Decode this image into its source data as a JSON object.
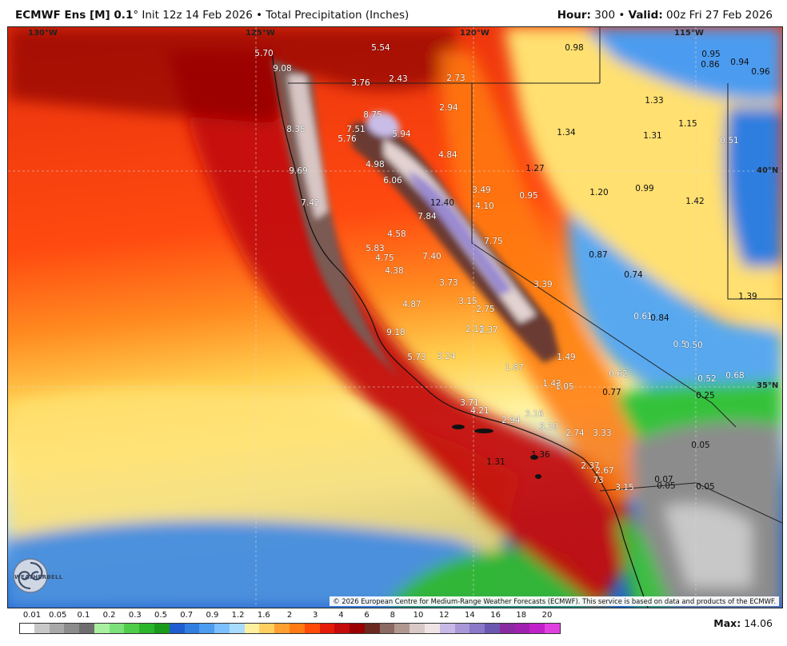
{
  "header": {
    "model": "ECMWF Ens [M] 0.1",
    "degree": "°",
    "init": "Init 12z 14 Feb 2026",
    "sep": "•",
    "product": "Total Precipitation (Inches)",
    "hour_label": "Hour:",
    "hour_value": "300",
    "valid_label": "Valid:",
    "valid_value": "00z Fri 27 Feb 2026"
  },
  "coords": {
    "lon130": "130°W",
    "lon125": "125°W",
    "lon120": "120°W",
    "lon115": "115°W",
    "lat40": "40°N",
    "lat35": "35°N"
  },
  "colors": {
    "ocean_far": "#ff3a10",
    "coast_red": "#d2140a",
    "dark_red": "#9a0000",
    "brown": "#7a5a52",
    "mountain": "#d9cece",
    "peak": "#9a8ad0",
    "orange": "#ff8a1a",
    "yellow": "#ffe060",
    "pale_yellow": "#fff6a0",
    "light_blue": "#a8d8ff",
    "blue": "#2a7ad8",
    "green": "#36c23a",
    "gray": "#8a8a8a",
    "light_gray": "#c0c0c0"
  },
  "values": [
    {
      "text": "5.70",
      "light": true
    },
    {
      "text": "9.08",
      "light": true
    },
    {
      "text": "5.54",
      "light": true
    },
    {
      "text": "3.76",
      "light": true
    },
    {
      "text": "2.43",
      "light": true
    },
    {
      "text": "2.73",
      "light": true
    },
    {
      "text": "0.98",
      "light": false
    },
    {
      "text": "0.95",
      "light": false
    },
    {
      "text": "0.86",
      "light": false
    },
    {
      "text": "0.94",
      "light": false
    },
    {
      "text": "0.96",
      "light": false
    },
    {
      "text": "2.94",
      "light": true
    },
    {
      "text": "1.33",
      "light": false
    },
    {
      "text": "8.75",
      "light": true
    },
    {
      "text": "7.51",
      "light": true
    },
    {
      "text": "8.35",
      "light": true
    },
    {
      "text": "5.76",
      "light": true
    },
    {
      "text": "5.94",
      "light": true
    },
    {
      "text": "1.34",
      "light": false
    },
    {
      "text": "1.31",
      "light": false
    },
    {
      "text": "1.15",
      "light": false
    },
    {
      "text": "0.51",
      "light": true
    },
    {
      "text": "4.84",
      "light": true
    },
    {
      "text": "4.98",
      "light": true
    },
    {
      "text": "1.27",
      "light": false
    },
    {
      "text": "9.69",
      "light": true
    },
    {
      "text": "6.06",
      "light": true
    },
    {
      "text": "3.49",
      "light": true
    },
    {
      "text": "0.95",
      "light": true
    },
    {
      "text": "1.20",
      "light": false
    },
    {
      "text": "0.99",
      "light": false
    },
    {
      "text": "1.42",
      "light": false
    },
    {
      "text": "7.42",
      "light": true
    },
    {
      "text": "12.40",
      "light": false
    },
    {
      "text": "4.10",
      "light": true
    },
    {
      "text": "7.84",
      "light": true
    },
    {
      "text": "4.58",
      "light": true
    },
    {
      "text": "7.75",
      "light": true
    },
    {
      "text": "5.83",
      "light": true
    },
    {
      "text": "4.75",
      "light": true
    },
    {
      "text": "7.40",
      "light": true
    },
    {
      "text": "0.87",
      "light": false
    },
    {
      "text": "4.38",
      "light": true
    },
    {
      "text": "0.74",
      "light": false
    },
    {
      "text": "3.73",
      "light": true
    },
    {
      "text": "3.39",
      "light": true
    },
    {
      "text": "1.39",
      "light": false
    },
    {
      "text": "4.87",
      "light": true
    },
    {
      "text": "3.15",
      "light": true
    },
    {
      "text": "2.75",
      "light": true
    },
    {
      "text": "0.61",
      "light": true
    },
    {
      "text": "0.84",
      "light": false
    },
    {
      "text": "9.18",
      "light": true
    },
    {
      "text": "2.13",
      "light": true
    },
    {
      "text": "2.37",
      "light": true
    },
    {
      "text": "0.5",
      "light": true
    },
    {
      "text": "0.50",
      "light": true
    },
    {
      "text": "5.73",
      "light": true
    },
    {
      "text": "3.24",
      "light": true
    },
    {
      "text": "1.49",
      "light": true
    },
    {
      "text": "1.87",
      "light": true
    },
    {
      "text": "0.62",
      "light": true
    },
    {
      "text": "0.52",
      "light": true
    },
    {
      "text": "0.68",
      "light": true
    },
    {
      "text": "1.43",
      "light": true
    },
    {
      "text": "1.05",
      "light": true
    },
    {
      "text": "0.77",
      "light": false
    },
    {
      "text": "0.25",
      "light": false
    },
    {
      "text": "3.71",
      "light": true
    },
    {
      "text": "4.21",
      "light": true
    },
    {
      "text": "3.16",
      "light": true
    },
    {
      "text": "2.94",
      "light": true
    },
    {
      "text": "3.10",
      "light": true
    },
    {
      "text": "2.74",
      "light": true
    },
    {
      "text": "3.33",
      "light": true
    },
    {
      "text": "0.05",
      "light": false
    },
    {
      "text": "1.31",
      "light": false
    },
    {
      "text": "1.36",
      "light": false
    },
    {
      "text": "2.37",
      "light": true
    },
    {
      "text": "2.67",
      "light": true
    },
    {
      "text": "0.07",
      "light": false
    },
    {
      "text": "3.15",
      "light": true
    },
    {
      "text": "0.05",
      "light": false
    },
    {
      "text": "0.05",
      "light": false
    },
    {
      "text": "73",
      "light": true
    }
  ],
  "copyright": "© 2026 European Centre for Medium-Range Weather Forecasts (ECMWF). This service is based on data and products of the ECMWF.",
  "logo_text": "WEATHERBELL",
  "scale": {
    "labels": [
      "0.01",
      "0.05",
      "0.1",
      "0.2",
      "0.3",
      "0.5",
      "0.7",
      "0.9",
      "1.2",
      "1.6",
      "2",
      "3",
      "4",
      "6",
      "8",
      "10",
      "12",
      "14",
      "16",
      "18",
      "20"
    ],
    "colors": [
      "#ffffff",
      "#c8c8c8",
      "#a8a8a8",
      "#8c8c8c",
      "#6e6e6e",
      "#a8f0a0",
      "#7ce07a",
      "#50cc4c",
      "#2ab52a",
      "#1a9a1a",
      "#1f5ed0",
      "#2f7ee0",
      "#4c9cf0",
      "#7cc0ff",
      "#a8dcff",
      "#fff0a0",
      "#ffd060",
      "#ffa030",
      "#ff7a10",
      "#ff4a0a",
      "#e61a08",
      "#c40a0a",
      "#9a0000",
      "#6a2a20",
      "#8a6a62",
      "#b09890",
      "#d8c8c6",
      "#efe4e4",
      "#c8b8e8",
      "#a898d8",
      "#8a78c8",
      "#6a58b0",
      "#8a2aa0",
      "#a020b0",
      "#c020c8",
      "#e040e0"
    ]
  },
  "max": {
    "label": "Max:",
    "value": "14.06"
  }
}
